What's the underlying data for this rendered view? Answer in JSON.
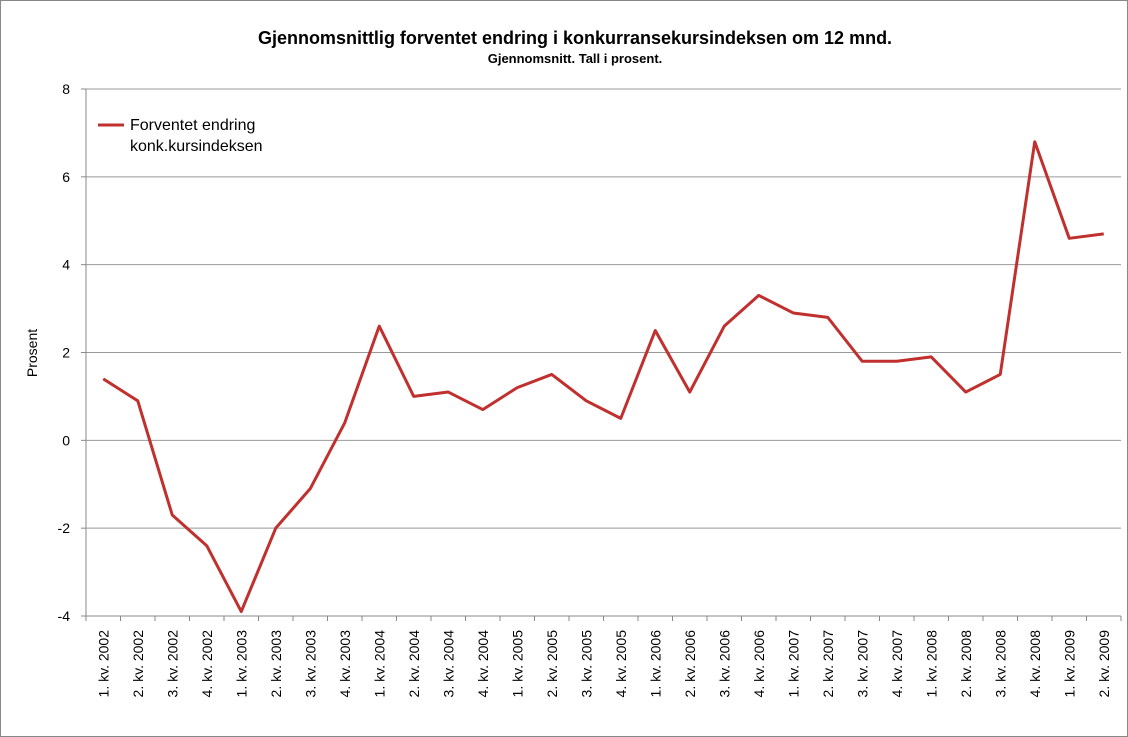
{
  "chart_data": {
    "type": "line",
    "title": "Gjennomsnittlig forventet endring i konkurransekursindeksen om 12 mnd.",
    "subtitle": "Gjennomsnitt. Tall i prosent.",
    "y_label": "Prosent",
    "categories": [
      "1. kv. 2002",
      "2. kv. 2002",
      "3. kv. 2002",
      "4. kv. 2002",
      "1. kv. 2003",
      "2. kv. 2003",
      "3. kv. 2003",
      "4. kv. 2003",
      "1. kv. 2004",
      "2. kv. 2004",
      "3. kv. 2004",
      "4. kv. 2004",
      "1. kv. 2005",
      "2. kv. 2005",
      "3. kv. 2005",
      "4. kv. 2005",
      "1. kv. 2006",
      "2. kv. 2006",
      "3. kv. 2006",
      "4. kv. 2006",
      "1. kv. 2007",
      "2. kv. 2007",
      "3. kv. 2007",
      "4. kv. 2007",
      "1. kv. 2008",
      "2. kv. 2008",
      "3. kv. 2008",
      "4. kv. 2008",
      "1. kv. 2009",
      "2. kv. 2009"
    ],
    "series": [
      {
        "name": "Forventet endring konk.kursindeksen",
        "color": "#c0302e",
        "values": [
          1.4,
          0.9,
          -1.7,
          -2.4,
          -3.9,
          -2.0,
          -1.1,
          0.4,
          2.6,
          1.0,
          1.1,
          0.7,
          1.2,
          1.5,
          0.9,
          0.5,
          2.5,
          1.1,
          2.6,
          3.3,
          2.9,
          2.8,
          1.8,
          1.8,
          1.9,
          1.1,
          1.5,
          6.8,
          4.6,
          4.7
        ]
      }
    ],
    "ylim": [
      -4,
      8
    ],
    "yticks": [
      -4,
      -2,
      0,
      2,
      4,
      6,
      8
    ],
    "grid": true,
    "legend": "top-left"
  }
}
